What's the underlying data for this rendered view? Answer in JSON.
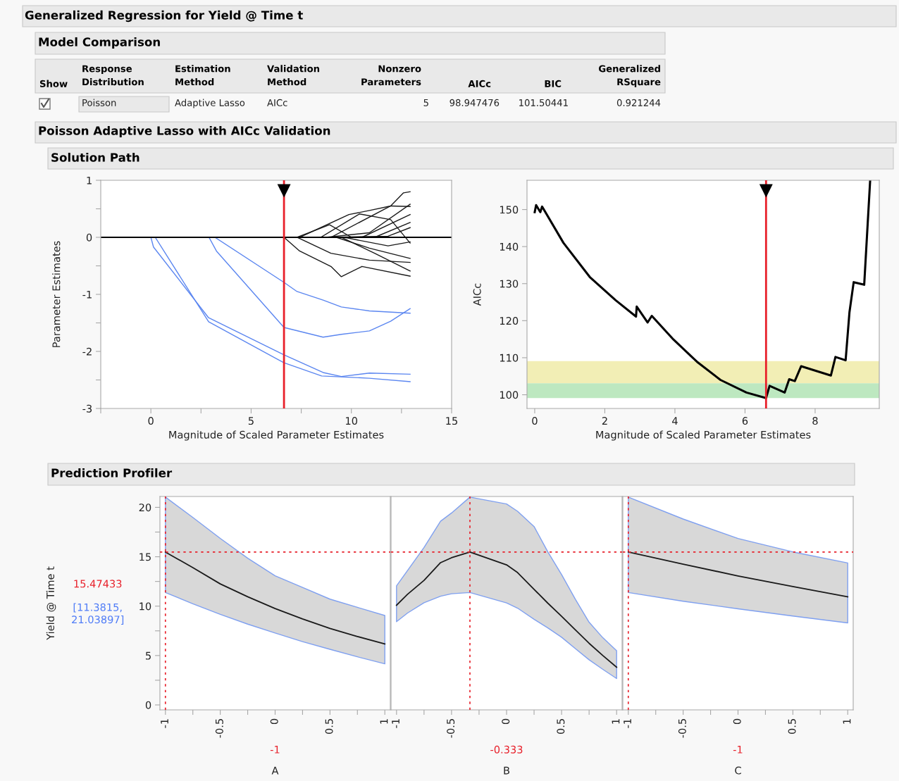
{
  "chart_data": [
    {
      "type": "other",
      "title": "Generalized Regression for Yield @ Time t",
      "annotations": [
        "Model Comparison",
        "Show",
        "Response\nDistribution",
        "Estimation\nMethod",
        "Validation\nMethod",
        "Nonzero\nParameters",
        "AICc",
        "BIC",
        "Generalized\nRSquare",
        "Poisson",
        "Adaptive Lasso",
        "AICc",
        "5",
        "98.947476",
        "101.50441",
        "0.921244",
        "Poisson Adaptive Lasso with AICc Validation",
        "Solution Path",
        "Prediction Profiler"
      ]
    },
    {
      "type": "line",
      "xlabel": "Magnitude of Scaled Parameter Estimates",
      "ylabel": "Parameter Estimates",
      "xlim": [
        -2.5,
        15
      ],
      "xticks": [
        {
          "value": -2.5,
          "label": null
        },
        0,
        {
          "value": 2.5,
          "label": null
        },
        5,
        {
          "value": 7.5,
          "label": null
        },
        10,
        {
          "value": 12.5,
          "label": null
        },
        15
      ],
      "ylim": [
        -3,
        1
      ],
      "yticks": [
        -3,
        {
          "value": -2.5,
          "label": null
        },
        -2,
        {
          "value": -1.5,
          "label": null
        },
        -1,
        {
          "value": -0.5,
          "label": null
        },
        0,
        {
          "value": 0.5,
          "label": null
        },
        1
      ],
      "ref_lines": [
        {
          "axis": "y",
          "value": 0,
          "color": "#000000",
          "line_style": "solid"
        },
        {
          "axis": "x",
          "value": 6.64,
          "color": "#e8202a",
          "line_style": "solid"
        }
      ],
      "series": [
        {
          "color": "#5b86f0",
          "x": [
            0,
            0.13,
            2.88,
            6.64,
            8.59,
            9.5,
            10.9,
            12.93
          ],
          "values": [
            0,
            -0.17,
            -1.41,
            -2.06,
            -2.37,
            -2.44,
            -2.38,
            -2.4
          ]
        },
        {
          "color": "#5b86f0",
          "x": [
            0.22,
            2.88,
            6.64,
            8.52,
            10.9,
            12.93
          ],
          "values": [
            0,
            -1.48,
            -2.2,
            -2.43,
            -2.47,
            -2.53
          ]
        },
        {
          "color": "#5b86f0",
          "x": [
            2.9,
            3.27,
            6.64,
            8.59,
            9.5,
            10.9,
            11.96,
            12.93
          ],
          "values": [
            0,
            -0.24,
            -1.58,
            -1.75,
            -1.7,
            -1.64,
            -1.47,
            -1.25
          ]
        },
        {
          "color": "#5b86f0",
          "x": [
            3.2,
            6.64,
            7.29,
            8.59,
            9.5,
            10.9,
            12.93
          ],
          "values": [
            0,
            -0.79,
            -0.95,
            -1.1,
            -1.22,
            -1.29,
            -1.33
          ]
        },
        {
          "color": "#1a1a1a",
          "x": [
            6.64,
            7.42,
            8.98,
            9.5,
            10.53,
            12.93
          ],
          "values": [
            0,
            -0.24,
            -0.51,
            -0.69,
            -0.51,
            -0.68
          ]
        },
        {
          "color": "#1a1a1a",
          "x": [
            7.29,
            8.91,
            10.01,
            12.93
          ],
          "values": [
            0,
            0.22,
            0,
            0
          ]
        },
        {
          "color": "#1a1a1a",
          "x": [
            7.42,
            9.88,
            10.9,
            11.96,
            12.6,
            12.93
          ],
          "values": [
            0,
            0.4,
            0.47,
            0.55,
            0.78,
            0.8
          ]
        },
        {
          "color": "#1a1a1a",
          "x": [
            8.47,
            10.4,
            11.96,
            12.93
          ],
          "values": [
            0,
            0.41,
            0.31,
            -0.1
          ]
        },
        {
          "color": "#1a1a1a",
          "x": [
            7.29,
            8.98,
            10.9,
            12.93
          ],
          "values": [
            0,
            -0.28,
            -0.4,
            -0.44
          ]
        },
        {
          "color": "#1a1a1a",
          "x": [
            8.73,
            10.9,
            12.93
          ],
          "values": [
            0,
            0.08,
            0.58
          ]
        },
        {
          "color": "#1a1a1a",
          "x": [
            9.25,
            10.9,
            12.93
          ],
          "values": [
            0,
            -0.19,
            -0.37
          ]
        },
        {
          "color": "#1a1a1a",
          "x": [
            9.5,
            11.16,
            12.93
          ],
          "values": [
            0,
            -0.28,
            -0.59
          ]
        },
        {
          "color": "#1a1a1a",
          "x": [
            8.98,
            11.83,
            12.93
          ],
          "values": [
            0,
            0.02,
            0.17
          ]
        },
        {
          "color": "#1a1a1a",
          "x": [
            9.63,
            11.83,
            12.93
          ],
          "values": [
            0,
            -0.15,
            -0.08
          ]
        },
        {
          "color": "#1a1a1a",
          "x": [
            10.53,
            12.93
          ],
          "values": [
            0,
            0.4
          ]
        },
        {
          "color": "#1a1a1a",
          "x": [
            11.16,
            12.93
          ],
          "values": [
            0,
            0.26
          ]
        },
        {
          "color": "#1a1a1a",
          "x": [
            8.98,
            11.96,
            12.93
          ],
          "values": [
            0,
            0.55,
            0.54
          ]
        }
      ]
    },
    {
      "type": "line",
      "xlabel": "Magnitude of Scaled Parameter Estimates",
      "ylabel": "AICc",
      "xlim": [
        -0.22,
        9.83
      ],
      "xticks": [
        0,
        2,
        4,
        6,
        8
      ],
      "ylim": [
        96.3,
        157.9
      ],
      "yticks": [
        100,
        110,
        120,
        130,
        140,
        150
      ],
      "bands": [
        {
          "axis": "y",
          "from": 103.1,
          "to": 109.1,
          "color": "#f2eeb5"
        },
        {
          "axis": "y",
          "from": 99.1,
          "to": 103.1,
          "color": "#bde8c0"
        }
      ],
      "ref_lines": [
        {
          "axis": "x",
          "value": 6.6,
          "color": "#e8202a",
          "line_style": "solid"
        }
      ],
      "series": [
        {
          "color": "#000000",
          "x": [
            0,
            0.04,
            0.16,
            0.21,
            0.82,
            1.57,
            2.31,
            2.89,
            2.91,
            3.22,
            3.34,
            3.96,
            4.63,
            5.3,
            6.04,
            6.6,
            6.7,
            7.13,
            7.26,
            7.42,
            7.6,
            8.45,
            8.58,
            8.87,
            8.98,
            9.1,
            9.4,
            9.57
          ],
          "values": [
            149.3,
            151.2,
            149.3,
            150.8,
            141.0,
            131.8,
            125.5,
            121.1,
            123.8,
            119.5,
            121.3,
            114.9,
            108.9,
            104.0,
            100.6,
            99.1,
            102.4,
            100.6,
            104.2,
            103.7,
            107.7,
            105.2,
            110.2,
            109.3,
            122.3,
            130.4,
            129.7,
            157.9
          ]
        }
      ]
    },
    {
      "type": "line",
      "xlabel": "A",
      "ylabel": "Yield @ Time t",
      "xlim": [
        -1.05,
        1.05
      ],
      "xticks": [
        -1,
        {
          "value": -0.75,
          "label": null
        },
        -0.5,
        {
          "value": -0.25,
          "label": null
        },
        0,
        {
          "value": 0.25,
          "label": null
        },
        0.5,
        {
          "value": 0.75,
          "label": null
        },
        1
      ],
      "ylim": [
        -0.5,
        21.1
      ],
      "yticks": [
        0,
        {
          "value": 2.5,
          "label": null
        },
        5,
        {
          "value": 7.5,
          "label": null
        },
        10,
        {
          "value": 12.5,
          "label": null
        },
        15,
        {
          "value": 17.5,
          "label": null
        },
        20
      ],
      "annotations": [
        "[11.3815, 21.03897]"
      ],
      "ref_lines": [
        {
          "axis": "y",
          "value": 15.47433,
          "label": "15.47433",
          "color": "#e8202a",
          "line_style": "dotted"
        },
        {
          "axis": "x",
          "value": -1,
          "label": "-1",
          "color": "#e8202a",
          "line_style": "dotted"
        }
      ],
      "series": [
        {
          "color": "#1a1a1a",
          "x": [
            -1,
            -0.75,
            -0.5,
            -0.25,
            0,
            0.25,
            0.5,
            0.75,
            1
          ],
          "values": [
            15.47433,
            13.9,
            12.25,
            10.95,
            9.76,
            8.7,
            7.75,
            6.93,
            6.17
          ],
          "lower": [
            11.3815,
            10.24,
            9.17,
            8.18,
            7.28,
            6.41,
            5.63,
            4.87,
            4.16
          ],
          "upper": [
            21.03897,
            18.98,
            16.86,
            14.85,
            13.07,
            11.89,
            10.71,
            9.88,
            9.05
          ]
        }
      ]
    },
    {
      "type": "line",
      "xlabel": "B",
      "tick_labels": "x",
      "xlim": [
        -1.05,
        1.05
      ],
      "xticks": [
        -1,
        {
          "value": -0.75,
          "label": null
        },
        -0.5,
        {
          "value": -0.25,
          "label": null
        },
        0,
        {
          "value": 0.25,
          "label": null
        },
        0.5,
        {
          "value": 0.75,
          "label": null
        },
        1
      ],
      "ylim": [
        -0.5,
        21.1
      ],
      "ref_lines": [
        {
          "axis": "y",
          "value": 15.47433,
          "color": "#e8202a",
          "line_style": "dotted"
        },
        {
          "axis": "x",
          "value": -0.333,
          "label": "-0.333",
          "color": "#e8202a",
          "line_style": "dotted"
        }
      ],
      "series": [
        {
          "color": "#1a1a1a",
          "x": [
            -1,
            -0.9,
            -0.75,
            -0.6,
            -0.5,
            -0.333,
            0,
            0.1,
            0.25,
            0.375,
            0.5,
            0.625,
            0.75,
            0.875,
            1
          ],
          "values": [
            10.09,
            11.2,
            12.61,
            14.4,
            14.9,
            15.47433,
            14.18,
            13.4,
            11.7,
            10.3,
            8.97,
            7.6,
            6.24,
            5.0,
            3.82
          ],
          "lower": [
            8.43,
            9.3,
            10.35,
            11.0,
            11.25,
            11.3815,
            10.33,
            9.8,
            8.67,
            7.8,
            6.85,
            5.7,
            4.57,
            3.6,
            2.67
          ],
          "upper": [
            12.06,
            13.6,
            15.94,
            18.6,
            19.43,
            21.03897,
            20.34,
            19.6,
            18.06,
            15.5,
            13.2,
            10.7,
            8.37,
            6.8,
            5.49
          ]
        }
      ]
    },
    {
      "type": "line",
      "xlabel": "C",
      "tick_labels": "x",
      "xlim": [
        -1.05,
        1.05
      ],
      "xticks": [
        -1,
        {
          "value": -0.75,
          "label": null
        },
        -0.5,
        {
          "value": -0.25,
          "label": null
        },
        0,
        {
          "value": 0.25,
          "label": null
        },
        0.5,
        {
          "value": 0.75,
          "label": null
        },
        1
      ],
      "ylim": [
        -0.5,
        21.1
      ],
      "ref_lines": [
        {
          "axis": "y",
          "value": 15.47433,
          "color": "#e8202a",
          "line_style": "dotted"
        },
        {
          "axis": "x",
          "value": -1,
          "label": "-1",
          "color": "#e8202a",
          "line_style": "dotted"
        }
      ],
      "series": [
        {
          "color": "#1a1a1a",
          "x": [
            -1,
            -0.5,
            0,
            0.5,
            1
          ],
          "values": [
            15.47433,
            14.25,
            13.06,
            11.98,
            10.94
          ],
          "lower": [
            11.3815,
            10.5,
            9.73,
            9.0,
            8.3
          ],
          "upper": [
            21.03897,
            18.82,
            16.85,
            15.49,
            14.37
          ]
        }
      ]
    }
  ]
}
